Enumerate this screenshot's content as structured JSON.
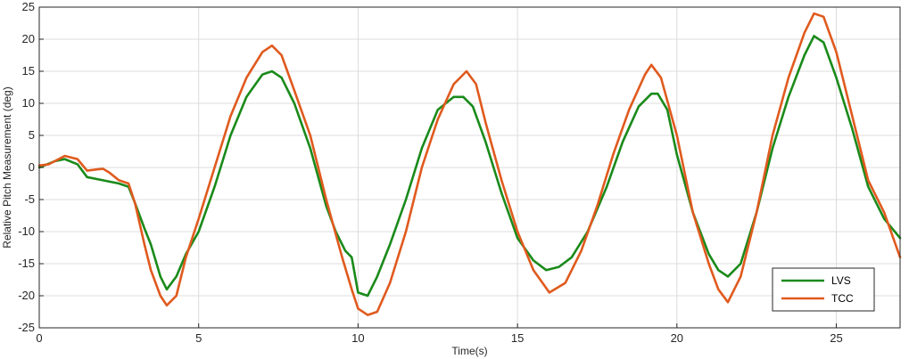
{
  "chart_data": {
    "type": "line",
    "title": "",
    "xlabel": "Time(s)",
    "ylabel": "Relative Pitch Measurement (deg)",
    "xlim": [
      0,
      27
    ],
    "ylim": [
      -25,
      25
    ],
    "x_ticks": [
      0,
      5,
      10,
      15,
      20,
      25
    ],
    "y_ticks": [
      25,
      20,
      15,
      10,
      5,
      0,
      -5,
      -10,
      -15,
      -20,
      -25
    ],
    "grid": true,
    "legend_position": "bottom-right",
    "series": [
      {
        "name": "LVS",
        "color": "#1a8a1a",
        "x": [
          0,
          0.5,
          0.8,
          1.2,
          1.5,
          2.0,
          2.5,
          2.8,
          3.0,
          3.3,
          3.5,
          3.8,
          4.0,
          4.3,
          4.6,
          5.0,
          5.5,
          6.0,
          6.5,
          7.0,
          7.3,
          7.6,
          8.0,
          8.5,
          9.0,
          9.3,
          9.6,
          9.8,
          10.0,
          10.3,
          10.6,
          11.0,
          11.5,
          12.0,
          12.5,
          13.0,
          13.3,
          13.6,
          14.0,
          14.5,
          15.0,
          15.5,
          15.9,
          16.3,
          16.7,
          17.2,
          17.8,
          18.3,
          18.8,
          19.2,
          19.4,
          19.7,
          20.0,
          20.5,
          21.0,
          21.3,
          21.6,
          22.0,
          22.5,
          23.0,
          23.5,
          24.0,
          24.3,
          24.6,
          25.0,
          25.5,
          26.0,
          26.5,
          27.0
        ],
        "y": [
          0,
          1,
          1.3,
          0.5,
          -1.5,
          -2.0,
          -2.5,
          -3.0,
          -5.5,
          -9.5,
          -12,
          -17,
          -19,
          -17,
          -13.5,
          -10,
          -3,
          5,
          11,
          14.5,
          15,
          14,
          10,
          3,
          -6,
          -10,
          -13,
          -14,
          -19.5,
          -20,
          -17,
          -12,
          -5,
          3,
          9,
          11,
          11,
          9.5,
          4,
          -4,
          -11,
          -14.5,
          -16,
          -15.5,
          -14,
          -10,
          -3,
          4,
          9.5,
          11.5,
          11.5,
          9,
          2,
          -7,
          -13.5,
          -16,
          -17,
          -15,
          -7,
          3,
          11,
          17.5,
          20.5,
          19.5,
          14,
          6,
          -3,
          -8,
          -11
        ]
      },
      {
        "name": "TCC",
        "color": "#e05a1e",
        "x": [
          0,
          0.3,
          0.8,
          1.2,
          1.5,
          1.8,
          2.0,
          2.2,
          2.5,
          2.8,
          3.0,
          3.3,
          3.5,
          3.8,
          4.0,
          4.3,
          4.6,
          5.0,
          5.5,
          6.0,
          6.5,
          7.0,
          7.3,
          7.6,
          8.0,
          8.5,
          9.0,
          9.5,
          9.8,
          10.0,
          10.3,
          10.6,
          11.0,
          11.5,
          12.0,
          12.5,
          13.0,
          13.4,
          13.7,
          14.0,
          14.5,
          15.0,
          15.5,
          16.0,
          16.5,
          17.0,
          17.5,
          18.0,
          18.5,
          19.0,
          19.2,
          19.5,
          20.0,
          20.5,
          21.0,
          21.3,
          21.6,
          22.0,
          22.5,
          23.0,
          23.5,
          24.0,
          24.3,
          24.6,
          25.0,
          25.5,
          26.0,
          26.5,
          27.0
        ],
        "y": [
          0.3,
          0.5,
          1.8,
          1.3,
          -0.5,
          -0.3,
          -0.2,
          -0.8,
          -2.0,
          -2.5,
          -5.5,
          -12,
          -16,
          -20,
          -21.5,
          -20,
          -14,
          -8,
          0,
          8,
          14,
          18,
          19,
          17.5,
          12,
          5,
          -5,
          -14,
          -19,
          -22,
          -23,
          -22.5,
          -18,
          -10,
          0,
          7.5,
          13,
          15,
          13,
          7,
          -2,
          -10,
          -16,
          -19.5,
          -18,
          -13,
          -6,
          2,
          9,
          14.5,
          16,
          14,
          5,
          -7,
          -15,
          -19,
          -21,
          -17,
          -7,
          5,
          14,
          21,
          24,
          23.5,
          18,
          8,
          -2,
          -7,
          -14
        ]
      }
    ]
  }
}
